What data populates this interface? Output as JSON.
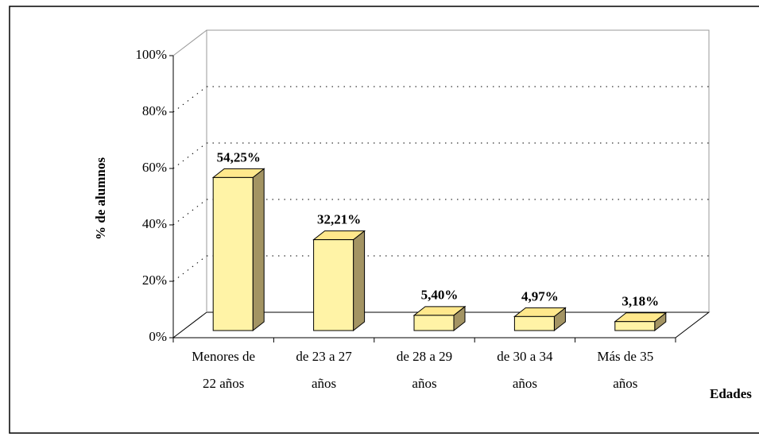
{
  "chart_data": {
    "type": "bar3d",
    "categories": [
      [
        "Menores de",
        "22 años"
      ],
      [
        "de 23 a 27",
        "años"
      ],
      [
        "de 28 a 29",
        "años"
      ],
      [
        "de 30 a 34",
        "años"
      ],
      [
        "Más de 35",
        "años"
      ]
    ],
    "values": [
      54.25,
      32.21,
      5.4,
      4.97,
      3.18
    ],
    "value_labels": [
      "54,25%",
      "32,21%",
      "5,40%",
      "4,97%",
      "3,18%"
    ],
    "color": "#fff3a6",
    "xlabel": "Edades",
    "ylabel": "% de alumnos",
    "ylim": [
      0,
      100
    ],
    "yticks": [
      {
        "value": 0,
        "label": "0%"
      },
      {
        "value": 20,
        "label": "20%"
      },
      {
        "value": 40,
        "label": "40%"
      },
      {
        "value": 60,
        "label": "60%"
      },
      {
        "value": 80,
        "label": "80%"
      },
      {
        "value": 100,
        "label": "100%"
      }
    ],
    "grid": true
  }
}
